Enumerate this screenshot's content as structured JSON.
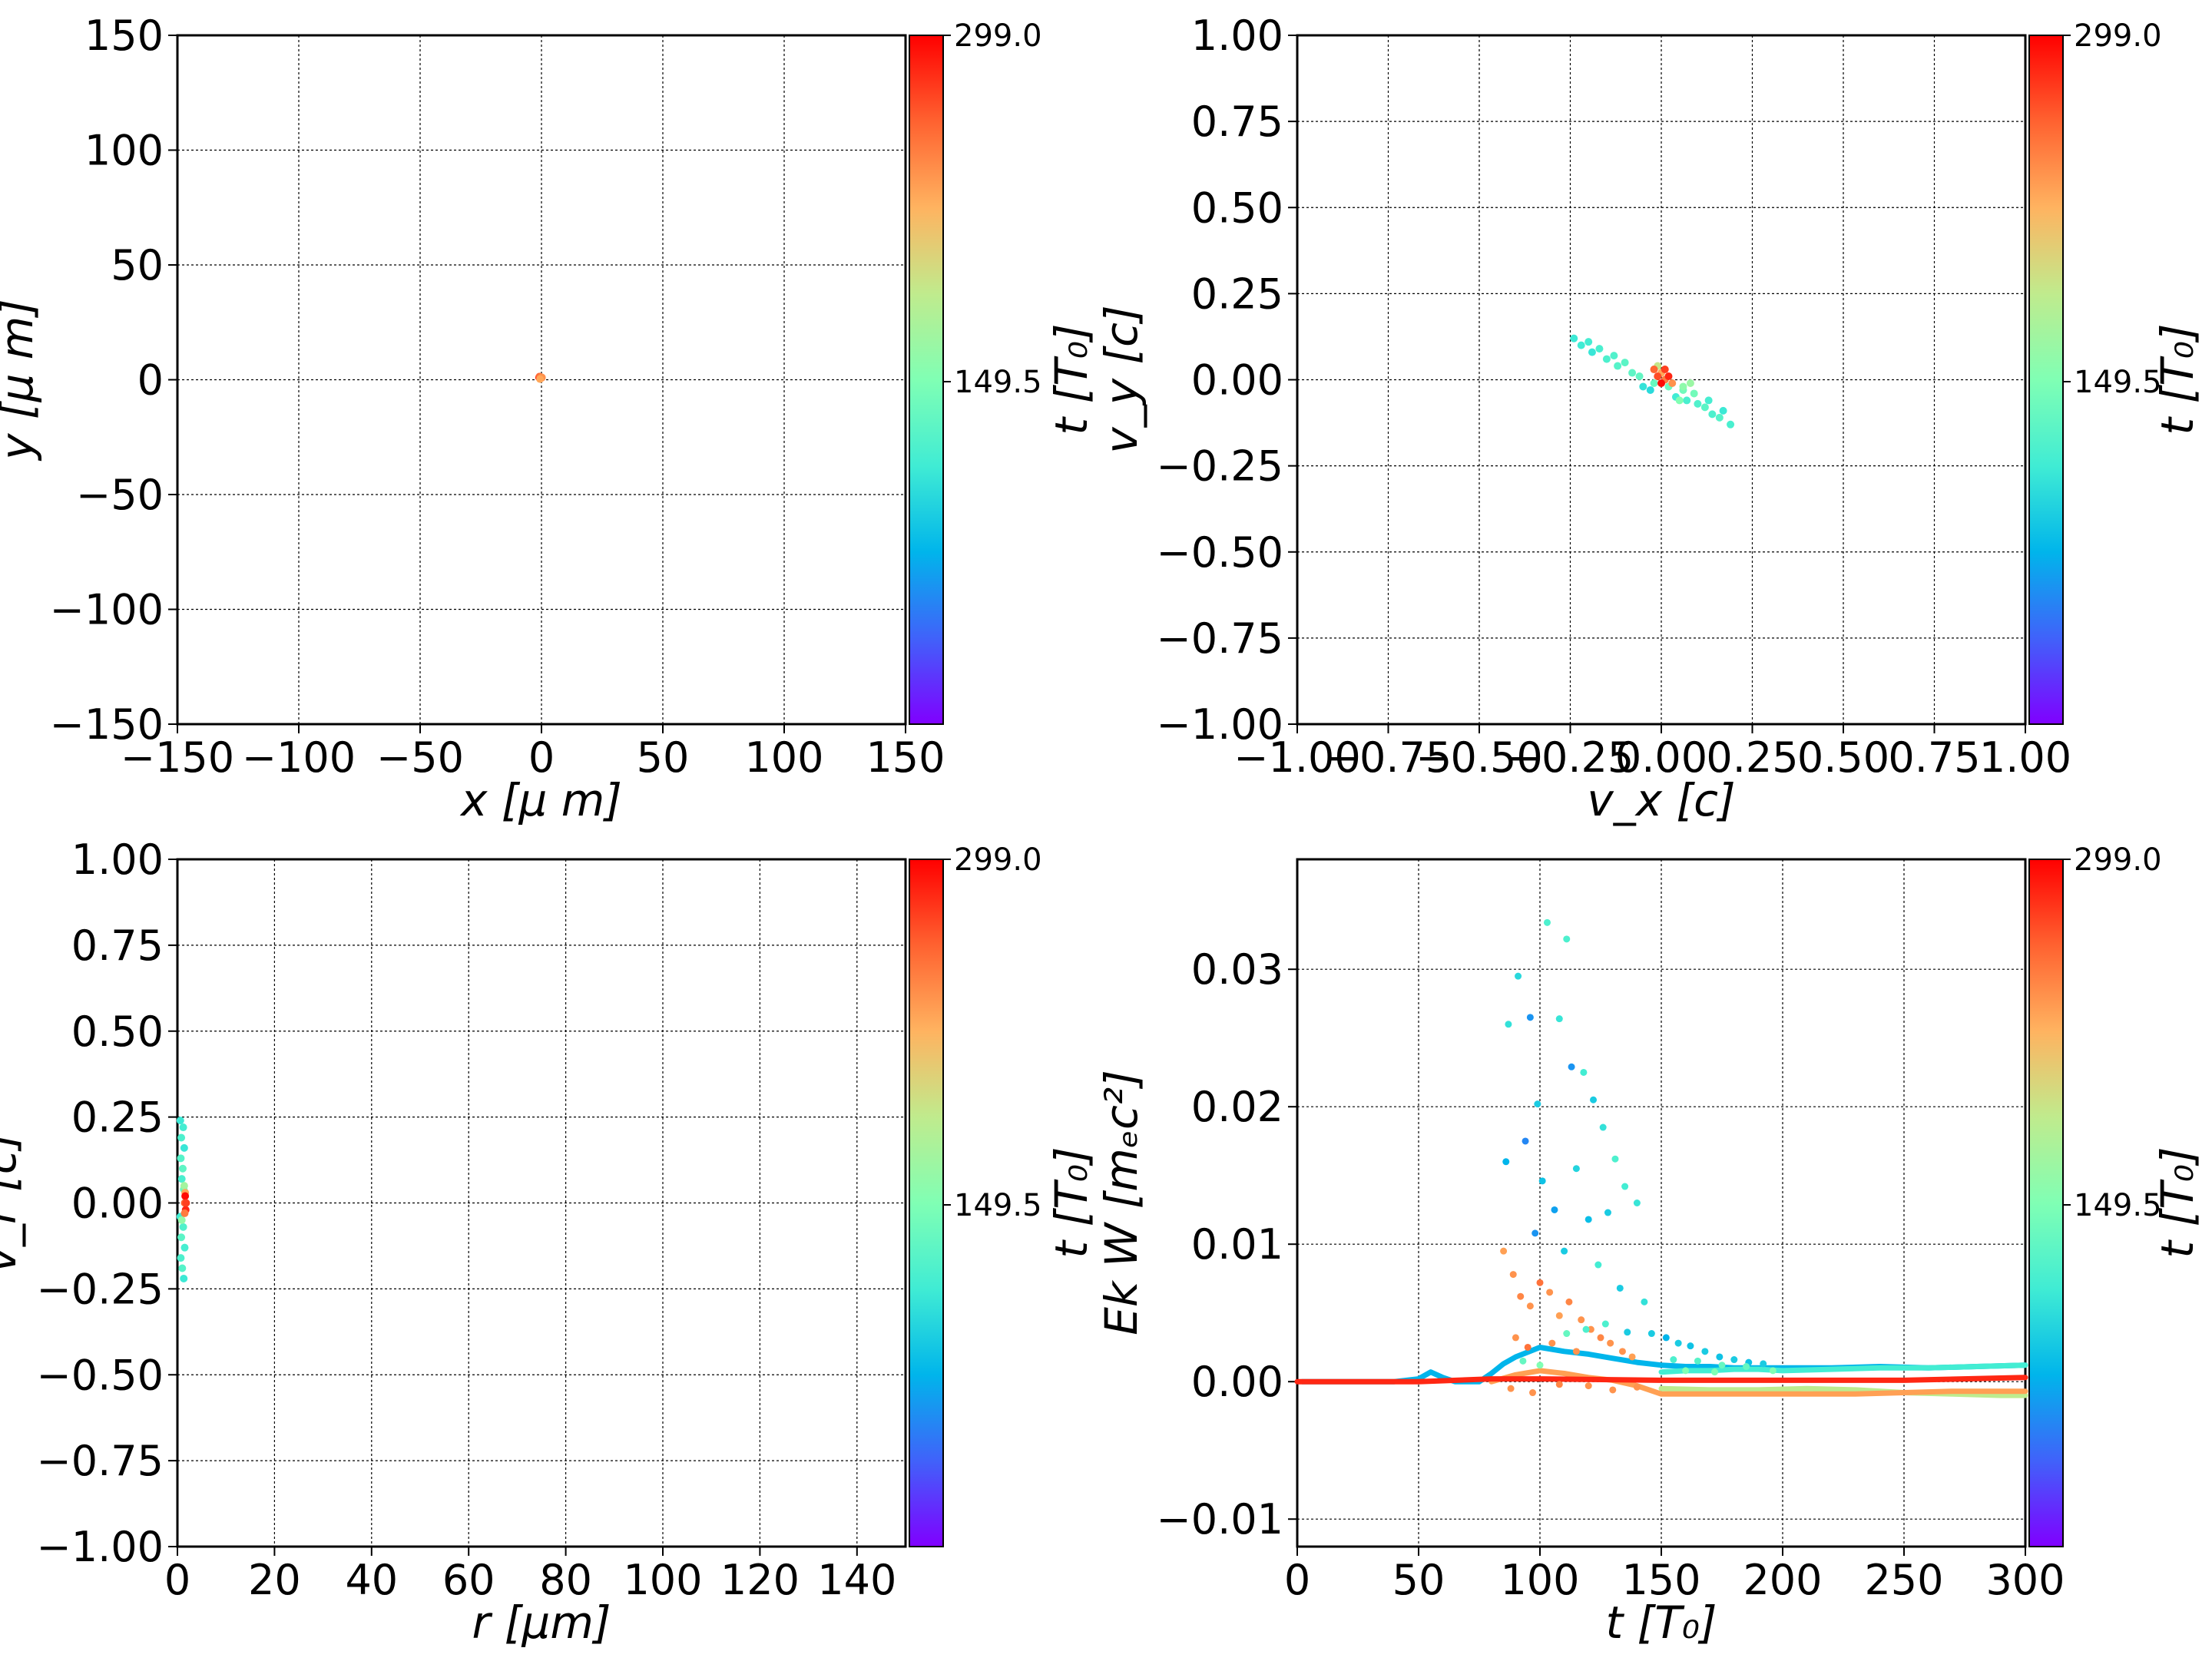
{
  "chart_data": [
    {
      "id": "xy",
      "type": "scatter",
      "xlabel": "x  [μ m]",
      "ylabel": "y  [μ m]",
      "xlim": [
        -150,
        150
      ],
      "ylim": [
        -150,
        150
      ],
      "xticks": [
        -150,
        -100,
        -50,
        0,
        50,
        100,
        150
      ],
      "yticks": [
        -150,
        -100,
        -50,
        0,
        50,
        100,
        150
      ],
      "xtick_labels": [
        "−150",
        "−100",
        "−50",
        "0",
        "50",
        "100",
        "150"
      ],
      "ytick_labels": [
        "−150",
        "−100",
        "−50",
        "0",
        "50",
        "100",
        "150"
      ],
      "grid": true,
      "colorbar": {
        "label": "t [T₀]",
        "ticks": [
          "299.0",
          "149.5"
        ],
        "range": [
          0,
          299
        ]
      },
      "points": [
        {
          "x": -1.0,
          "y": 1.0,
          "t": 290
        },
        {
          "x": -0.5,
          "y": 0.5,
          "t": 280
        },
        {
          "x": 0.0,
          "y": 0.8,
          "t": 270
        },
        {
          "x": -0.8,
          "y": 1.4,
          "t": 260
        },
        {
          "x": -0.3,
          "y": 1.2,
          "t": 250
        },
        {
          "x": 0.2,
          "y": 1.0,
          "t": 240
        },
        {
          "x": -0.6,
          "y": 0.3,
          "t": 230
        }
      ]
    },
    {
      "id": "vxvy",
      "type": "scatter",
      "xlabel": "v_x [c]",
      "ylabel": "v_y [c]",
      "xlim": [
        -1.0,
        1.0
      ],
      "ylim": [
        -1.0,
        1.0
      ],
      "xticks": [
        -1.0,
        -0.75,
        -0.5,
        -0.25,
        0.0,
        0.25,
        0.5,
        0.75,
        1.0
      ],
      "yticks": [
        -1.0,
        -0.75,
        -0.5,
        -0.25,
        0.0,
        0.25,
        0.5,
        0.75,
        1.0
      ],
      "xtick_labels": [
        "−1.00",
        "−0.75",
        "−0.50",
        "−0.25",
        "0.00",
        "0.25",
        "0.50",
        "0.75",
        "1.00"
      ],
      "ytick_labels": [
        "−1.00",
        "−0.75",
        "−0.50",
        "−0.25",
        "0.00",
        "0.25",
        "0.50",
        "0.75",
        "1.00"
      ],
      "grid": true,
      "colorbar": {
        "label": "t [T₀]",
        "ticks": [
          "299.0",
          "149.5"
        ],
        "range": [
          0,
          299
        ]
      },
      "points": [
        {
          "x": -0.24,
          "y": 0.12,
          "t": 110
        },
        {
          "x": -0.22,
          "y": 0.1,
          "t": 112
        },
        {
          "x": -0.2,
          "y": 0.11,
          "t": 115
        },
        {
          "x": -0.19,
          "y": 0.08,
          "t": 108
        },
        {
          "x": -0.17,
          "y": 0.09,
          "t": 118
        },
        {
          "x": -0.15,
          "y": 0.06,
          "t": 120
        },
        {
          "x": -0.13,
          "y": 0.07,
          "t": 122
        },
        {
          "x": -0.12,
          "y": 0.04,
          "t": 125
        },
        {
          "x": -0.1,
          "y": 0.05,
          "t": 128
        },
        {
          "x": -0.08,
          "y": 0.02,
          "t": 130
        },
        {
          "x": -0.06,
          "y": 0.01,
          "t": 132
        },
        {
          "x": -0.05,
          "y": -0.02,
          "t": 105
        },
        {
          "x": -0.03,
          "y": -0.03,
          "t": 100
        },
        {
          "x": -0.02,
          "y": -0.01,
          "t": 135
        },
        {
          "x": 0.02,
          "y": -0.02,
          "t": 138
        },
        {
          "x": 0.04,
          "y": -0.05,
          "t": 112
        },
        {
          "x": 0.06,
          "y": -0.03,
          "t": 140
        },
        {
          "x": 0.07,
          "y": -0.06,
          "t": 118
        },
        {
          "x": 0.09,
          "y": -0.04,
          "t": 142
        },
        {
          "x": 0.1,
          "y": -0.07,
          "t": 122
        },
        {
          "x": 0.12,
          "y": -0.08,
          "t": 128
        },
        {
          "x": 0.13,
          "y": -0.06,
          "t": 116
        },
        {
          "x": 0.14,
          "y": -0.1,
          "t": 120
        },
        {
          "x": 0.16,
          "y": -0.11,
          "t": 125
        },
        {
          "x": 0.17,
          "y": -0.09,
          "t": 110
        },
        {
          "x": 0.19,
          "y": -0.13,
          "t": 118
        },
        {
          "x": 0.05,
          "y": -0.06,
          "t": 150
        },
        {
          "x": 0.06,
          "y": -0.02,
          "t": 158
        },
        {
          "x": 0.08,
          "y": -0.01,
          "t": 165
        },
        {
          "x": -0.01,
          "y": 0.04,
          "t": 190
        },
        {
          "x": 0.0,
          "y": 0.02,
          "t": 230
        },
        {
          "x": 0.01,
          "y": 0.0,
          "t": 250
        },
        {
          "x": -0.01,
          "y": 0.01,
          "t": 270
        },
        {
          "x": 0.02,
          "y": 0.01,
          "t": 285
        },
        {
          "x": 0.0,
          "y": -0.01,
          "t": 295
        },
        {
          "x": 0.01,
          "y": 0.03,
          "t": 275
        },
        {
          "x": -0.02,
          "y": 0.03,
          "t": 260
        },
        {
          "x": 0.03,
          "y": -0.01,
          "t": 240
        }
      ]
    },
    {
      "id": "rvr",
      "type": "scatter",
      "xlabel": "r [μm]",
      "ylabel": "v_r [c]",
      "xlim": [
        0,
        150
      ],
      "ylim": [
        -1.0,
        1.0
      ],
      "xticks": [
        0,
        20,
        40,
        60,
        80,
        100,
        120,
        140
      ],
      "yticks": [
        -1.0,
        -0.75,
        -0.5,
        -0.25,
        0.0,
        0.25,
        0.5,
        0.75,
        1.0
      ],
      "xtick_labels": [
        "0",
        "20",
        "40",
        "60",
        "80",
        "100",
        "120",
        "140"
      ],
      "ytick_labels": [
        "−1.00",
        "−0.75",
        "−0.50",
        "−0.25",
        "0.00",
        "0.25",
        "0.50",
        "0.75",
        "1.00"
      ],
      "grid": true,
      "colorbar": {
        "label": "t [T₀]",
        "ticks": [
          "299.0",
          "149.5"
        ],
        "range": [
          0,
          299
        ]
      },
      "points": [
        {
          "x": 0.6,
          "y": 0.24,
          "t": 110
        },
        {
          "x": 1.2,
          "y": 0.22,
          "t": 115
        },
        {
          "x": 0.8,
          "y": 0.19,
          "t": 120
        },
        {
          "x": 1.4,
          "y": 0.16,
          "t": 108
        },
        {
          "x": 0.7,
          "y": 0.13,
          "t": 125
        },
        {
          "x": 1.1,
          "y": 0.1,
          "t": 130
        },
        {
          "x": 0.9,
          "y": 0.07,
          "t": 118
        },
        {
          "x": 1.3,
          "y": 0.04,
          "t": 135
        },
        {
          "x": 0.6,
          "y": -0.04,
          "t": 112
        },
        {
          "x": 1.2,
          "y": -0.07,
          "t": 122
        },
        {
          "x": 0.8,
          "y": -0.1,
          "t": 128
        },
        {
          "x": 1.5,
          "y": -0.13,
          "t": 116
        },
        {
          "x": 0.7,
          "y": -0.16,
          "t": 120
        },
        {
          "x": 1.0,
          "y": -0.19,
          "t": 125
        },
        {
          "x": 1.3,
          "y": -0.22,
          "t": 110
        },
        {
          "x": 0.9,
          "y": -0.05,
          "t": 160
        },
        {
          "x": 1.4,
          "y": 0.05,
          "t": 170
        },
        {
          "x": 1.6,
          "y": 0.03,
          "t": 230
        },
        {
          "x": 1.5,
          "y": 0.0,
          "t": 260
        },
        {
          "x": 1.7,
          "y": -0.02,
          "t": 285
        },
        {
          "x": 1.6,
          "y": 0.02,
          "t": 295
        },
        {
          "x": 1.8,
          "y": 0.0,
          "t": 275
        },
        {
          "x": 1.5,
          "y": -0.03,
          "t": 250
        }
      ]
    },
    {
      "id": "ek",
      "type": "scatter",
      "xlabel": "t [T₀]",
      "ylabel": "Ek W [mₑc²]",
      "xlim": [
        0,
        300
      ],
      "ylim": [
        -0.012,
        0.038
      ],
      "xticks": [
        0,
        50,
        100,
        150,
        200,
        250,
        300
      ],
      "yticks": [
        -0.01,
        0.0,
        0.01,
        0.02,
        0.03
      ],
      "xtick_labels": [
        "0",
        "50",
        "100",
        "150",
        "200",
        "250",
        "300"
      ],
      "ytick_labels": [
        "−0.01",
        "0.00",
        "0.01",
        "0.02",
        "0.03"
      ],
      "grid": true,
      "colorbar": {
        "label": "t [T₀]",
        "ticks": [
          "299.0",
          "149.5"
        ],
        "range": [
          0,
          299
        ]
      },
      "series": [
        {
          "role": "blue-green",
          "c": 0.25,
          "x": [
            2,
            20,
            40,
            50,
            55,
            60,
            65,
            75,
            80,
            85,
            90,
            100,
            110,
            120,
            130,
            140,
            150,
            160,
            170,
            180,
            190,
            200,
            220,
            240,
            260,
            280,
            300
          ],
          "y": [
            0.0,
            0.0,
            0.0,
            0.0002,
            0.0007,
            0.0003,
            0.0,
            0.0,
            0.0006,
            0.0013,
            0.0018,
            0.0025,
            0.0022,
            0.002,
            0.0017,
            0.0014,
            0.0012,
            0.0011,
            0.0011,
            0.001,
            0.001,
            0.001,
            0.001,
            0.0011,
            0.001,
            0.0011,
            0.0012
          ]
        },
        {
          "role": "teal",
          "c": 0.38,
          "x": [
            150,
            160,
            170,
            180,
            190,
            200,
            220,
            240,
            260,
            280,
            300
          ],
          "y": [
            0.0007,
            0.0008,
            0.0008,
            0.0009,
            0.0009,
            0.0008,
            0.0009,
            0.001,
            0.001,
            0.0011,
            0.0012
          ]
        },
        {
          "role": "yellow",
          "c": 0.62,
          "x": [
            150,
            170,
            190,
            210,
            230,
            250,
            270,
            290,
            300
          ],
          "y": [
            -0.0005,
            -0.0006,
            -0.0006,
            -0.0005,
            -0.0006,
            -0.0008,
            -0.0009,
            -0.001,
            -0.001
          ]
        },
        {
          "role": "orange",
          "c": 0.78,
          "x": [
            80,
            90,
            100,
            110,
            120,
            130,
            140,
            150,
            170,
            190,
            210,
            230,
            250,
            270,
            290,
            300
          ],
          "y": [
            0.0,
            0.0005,
            0.0008,
            0.0006,
            0.0003,
            0.0001,
            -0.0003,
            -0.0009,
            -0.0009,
            -0.0009,
            -0.0009,
            -0.0009,
            -0.0008,
            -0.0007,
            -0.0007,
            -0.0007
          ]
        },
        {
          "role": "red",
          "c": 0.95,
          "x": [
            0,
            50,
            80,
            100,
            150,
            200,
            250,
            300
          ],
          "y": [
            0.0,
            0.0,
            0.0002,
            0.0002,
            0.0001,
            0.0001,
            0.0001,
            0.0003
          ]
        }
      ],
      "points": [
        {
          "x": 87,
          "y": 0.026,
          "c": 0.35
        },
        {
          "x": 91,
          "y": 0.0295,
          "c": 0.33
        },
        {
          "x": 96,
          "y": 0.0265,
          "c": 0.2
        },
        {
          "x": 99,
          "y": 0.0202,
          "c": 0.3
        },
        {
          "x": 103,
          "y": 0.0334,
          "c": 0.4
        },
        {
          "x": 108,
          "y": 0.0264,
          "c": 0.36
        },
        {
          "x": 111,
          "y": 0.0322,
          "c": 0.4
        },
        {
          "x": 113,
          "y": 0.0229,
          "c": 0.2
        },
        {
          "x": 118,
          "y": 0.0225,
          "c": 0.38
        },
        {
          "x": 122,
          "y": 0.0205,
          "c": 0.3
        },
        {
          "x": 126,
          "y": 0.0185,
          "c": 0.35
        },
        {
          "x": 131,
          "y": 0.0162,
          "c": 0.4
        },
        {
          "x": 135,
          "y": 0.0142,
          "c": 0.38
        },
        {
          "x": 140,
          "y": 0.013,
          "c": 0.36
        },
        {
          "x": 86,
          "y": 0.016,
          "c": 0.25
        },
        {
          "x": 94,
          "y": 0.0175,
          "c": 0.18
        },
        {
          "x": 101,
          "y": 0.0146,
          "c": 0.28
        },
        {
          "x": 106,
          "y": 0.0125,
          "c": 0.22
        },
        {
          "x": 115,
          "y": 0.0155,
          "c": 0.32
        },
        {
          "x": 120,
          "y": 0.0118,
          "c": 0.27
        },
        {
          "x": 128,
          "y": 0.0123,
          "c": 0.3
        },
        {
          "x": 98,
          "y": 0.0108,
          "c": 0.2
        },
        {
          "x": 110,
          "y": 0.0095,
          "c": 0.3
        },
        {
          "x": 124,
          "y": 0.0085,
          "c": 0.38
        },
        {
          "x": 85,
          "y": 0.0095,
          "c": 0.78
        },
        {
          "x": 89,
          "y": 0.0078,
          "c": 0.8
        },
        {
          "x": 92,
          "y": 0.0062,
          "c": 0.82
        },
        {
          "x": 96,
          "y": 0.0055,
          "c": 0.8
        },
        {
          "x": 100,
          "y": 0.0072,
          "c": 0.85
        },
        {
          "x": 104,
          "y": 0.0065,
          "c": 0.8
        },
        {
          "x": 108,
          "y": 0.0048,
          "c": 0.78
        },
        {
          "x": 112,
          "y": 0.0058,
          "c": 0.82
        },
        {
          "x": 117,
          "y": 0.0045,
          "c": 0.8
        },
        {
          "x": 121,
          "y": 0.0038,
          "c": 0.8
        },
        {
          "x": 125,
          "y": 0.0032,
          "c": 0.82
        },
        {
          "x": 129,
          "y": 0.0028,
          "c": 0.8
        },
        {
          "x": 134,
          "y": 0.0022,
          "c": 0.8
        },
        {
          "x": 138,
          "y": 0.0018,
          "c": 0.78
        },
        {
          "x": 90,
          "y": 0.0032,
          "c": 0.8
        },
        {
          "x": 95,
          "y": 0.0025,
          "c": 0.85
        },
        {
          "x": 105,
          "y": 0.0028,
          "c": 0.8
        },
        {
          "x": 115,
          "y": 0.0022,
          "c": 0.8
        },
        {
          "x": 88,
          "y": -0.0005,
          "c": 0.8
        },
        {
          "x": 97,
          "y": -0.0008,
          "c": 0.8
        },
        {
          "x": 108,
          "y": -0.0002,
          "c": 0.82
        },
        {
          "x": 120,
          "y": -0.0003,
          "c": 0.8
        },
        {
          "x": 130,
          "y": -0.0006,
          "c": 0.8
        },
        {
          "x": 140,
          "y": -0.0004,
          "c": 0.8
        },
        {
          "x": 93,
          "y": 0.0015,
          "c": 0.45
        },
        {
          "x": 100,
          "y": 0.0012,
          "c": 0.5
        },
        {
          "x": 111,
          "y": 0.0035,
          "c": 0.45
        },
        {
          "x": 119,
          "y": 0.0038,
          "c": 0.4
        },
        {
          "x": 127,
          "y": 0.0042,
          "c": 0.4
        },
        {
          "x": 136,
          "y": 0.0036,
          "c": 0.3
        },
        {
          "x": 143,
          "y": 0.0058,
          "c": 0.35
        },
        {
          "x": 133,
          "y": 0.0068,
          "c": 0.3
        },
        {
          "x": 146,
          "y": 0.0035,
          "c": 0.3
        },
        {
          "x": 152,
          "y": 0.0032,
          "c": 0.25
        },
        {
          "x": 157,
          "y": 0.0028,
          "c": 0.3
        },
        {
          "x": 162,
          "y": 0.0026,
          "c": 0.28
        },
        {
          "x": 168,
          "y": 0.0022,
          "c": 0.3
        },
        {
          "x": 174,
          "y": 0.0018,
          "c": 0.28
        },
        {
          "x": 180,
          "y": 0.0016,
          "c": 0.3
        },
        {
          "x": 186,
          "y": 0.0014,
          "c": 0.28
        },
        {
          "x": 192,
          "y": 0.0013,
          "c": 0.3
        },
        {
          "x": 155,
          "y": 0.0016,
          "c": 0.4
        },
        {
          "x": 165,
          "y": 0.0015,
          "c": 0.42
        },
        {
          "x": 175,
          "y": 0.0012,
          "c": 0.45
        },
        {
          "x": 185,
          "y": 0.0011,
          "c": 0.45
        },
        {
          "x": 160,
          "y": 0.0008,
          "c": 0.5
        },
        {
          "x": 172,
          "y": 0.0007,
          "c": 0.5
        },
        {
          "x": 196,
          "y": 0.0008,
          "c": 0.5
        }
      ]
    }
  ]
}
